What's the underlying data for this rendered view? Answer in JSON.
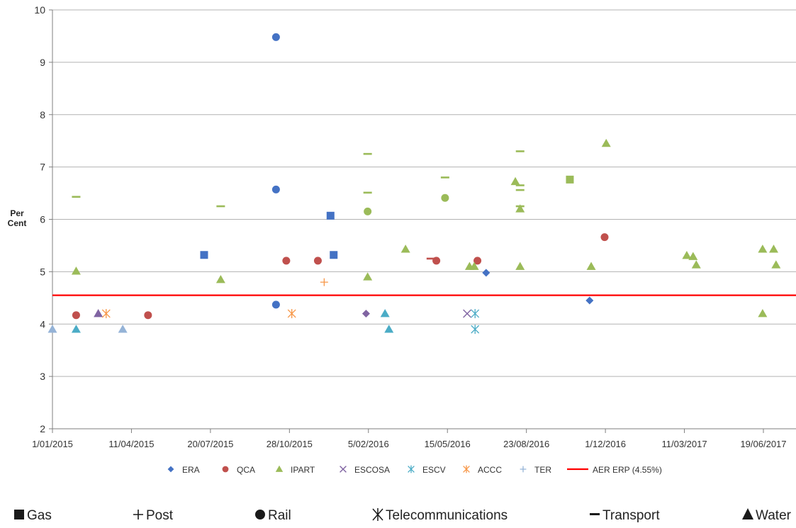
{
  "chart_data": {
    "type": "scatter",
    "ylabel": "Per\nCent",
    "xlim": [
      "2015-01-01",
      "2017-07-25"
    ],
    "ylim": [
      2,
      10
    ],
    "y_ticks": [
      2,
      3,
      4,
      5,
      6,
      7,
      8,
      9,
      10
    ],
    "x_ticks": [
      {
        "date": "2015-01-01",
        "label": "1/01/2015"
      },
      {
        "date": "2015-04-11",
        "label": "11/04/2015"
      },
      {
        "date": "2015-07-20",
        "label": "20/07/2015"
      },
      {
        "date": "2015-10-28",
        "label": "28/10/2015"
      },
      {
        "date": "2016-02-05",
        "label": "5/02/2016"
      },
      {
        "date": "2016-05-15",
        "label": "15/05/2016"
      },
      {
        "date": "2016-08-23",
        "label": "23/08/2016"
      },
      {
        "date": "2016-12-01",
        "label": "1/12/2016"
      },
      {
        "date": "2017-03-11",
        "label": "11/03/2017"
      },
      {
        "date": "2017-06-19",
        "label": "19/06/2017"
      }
    ],
    "grid": true,
    "legend_position": "bottom",
    "legend": [
      {
        "name": "ERA",
        "color": "#4472c4",
        "marker": "diamond"
      },
      {
        "name": "QCA",
        "color": "#c0504d",
        "marker": "circle"
      },
      {
        "name": "IPART",
        "color": "#9bbb59",
        "marker": "triangle"
      },
      {
        "name": "ESCOSA",
        "color": "#8064a2",
        "marker": "x"
      },
      {
        "name": "ESCV",
        "color": "#4bacc6",
        "marker": "star"
      },
      {
        "name": "ACCC",
        "color": "#f79646",
        "marker": "star"
      },
      {
        "name": "TER",
        "color": "#95b3d7",
        "marker": "plus"
      },
      {
        "name": "AER ERP (4.55%)",
        "color": "#ff0000",
        "marker": "line"
      }
    ],
    "reference_line": {
      "name": "AER ERP (4.55%)",
      "y": 4.55,
      "color": "#ff0000"
    },
    "series": [
      {
        "name": "ERA",
        "color": "#4472c4",
        "points": [
          {
            "x": "2015-10-11",
            "y": 9.48,
            "shape": "circle"
          },
          {
            "x": "2015-10-11",
            "y": 6.57,
            "shape": "circle"
          },
          {
            "x": "2015-10-11",
            "y": 4.37,
            "shape": "circle"
          },
          {
            "x": "2015-07-12",
            "y": 5.32,
            "shape": "square"
          },
          {
            "x": "2015-12-19",
            "y": 6.07,
            "shape": "square"
          },
          {
            "x": "2015-12-23",
            "y": 5.32,
            "shape": "square"
          },
          {
            "x": "2016-07-03",
            "y": 4.98,
            "shape": "diamond"
          },
          {
            "x": "2016-11-11",
            "y": 4.45,
            "shape": "diamond"
          }
        ]
      },
      {
        "name": "QCA",
        "color": "#c0504d",
        "points": [
          {
            "x": "2015-01-31",
            "y": 4.17,
            "shape": "circle"
          },
          {
            "x": "2015-05-02",
            "y": 4.17,
            "shape": "circle"
          },
          {
            "x": "2015-10-24",
            "y": 5.21,
            "shape": "circle"
          },
          {
            "x": "2015-12-03",
            "y": 5.21,
            "shape": "circle"
          },
          {
            "x": "2016-05-01",
            "y": 5.21,
            "shape": "circle"
          },
          {
            "x": "2016-06-22",
            "y": 5.21,
            "shape": "circle"
          },
          {
            "x": "2016-11-30",
            "y": 5.66,
            "shape": "circle"
          },
          {
            "x": "2016-04-24",
            "y": 5.25,
            "shape": "dash"
          }
        ]
      },
      {
        "name": "IPART",
        "color": "#9bbb59",
        "points": [
          {
            "x": "2015-01-31",
            "y": 6.43,
            "shape": "dash"
          },
          {
            "x": "2015-01-31",
            "y": 5.01,
            "shape": "triangle"
          },
          {
            "x": "2015-08-02",
            "y": 6.25,
            "shape": "dash"
          },
          {
            "x": "2015-08-02",
            "y": 4.85,
            "shape": "triangle"
          },
          {
            "x": "2016-02-04",
            "y": 7.25,
            "shape": "dash"
          },
          {
            "x": "2016-02-04",
            "y": 6.51,
            "shape": "dash"
          },
          {
            "x": "2016-02-04",
            "y": 6.15,
            "shape": "circle"
          },
          {
            "x": "2016-02-04",
            "y": 4.9,
            "shape": "triangle"
          },
          {
            "x": "2016-03-23",
            "y": 5.43,
            "shape": "triangle"
          },
          {
            "x": "2016-05-12",
            "y": 6.8,
            "shape": "dash"
          },
          {
            "x": "2016-05-12",
            "y": 6.41,
            "shape": "circle"
          },
          {
            "x": "2016-06-12",
            "y": 5.1,
            "shape": "triangle"
          },
          {
            "x": "2016-06-18",
            "y": 5.1,
            "shape": "triangle"
          },
          {
            "x": "2016-08-09",
            "y": 6.72,
            "shape": "triangle"
          },
          {
            "x": "2016-08-15",
            "y": 7.3,
            "shape": "dash"
          },
          {
            "x": "2016-08-15",
            "y": 6.65,
            "shape": "dash"
          },
          {
            "x": "2016-08-15",
            "y": 6.56,
            "shape": "dash"
          },
          {
            "x": "2016-08-15",
            "y": 6.25,
            "shape": "dash"
          },
          {
            "x": "2016-08-15",
            "y": 6.2,
            "shape": "triangle"
          },
          {
            "x": "2016-08-15",
            "y": 5.1,
            "shape": "triangle"
          },
          {
            "x": "2016-10-17",
            "y": 6.76,
            "shape": "square"
          },
          {
            "x": "2016-11-13",
            "y": 5.1,
            "shape": "triangle"
          },
          {
            "x": "2016-12-02",
            "y": 7.45,
            "shape": "triangle"
          },
          {
            "x": "2017-03-14",
            "y": 5.31,
            "shape": "triangle"
          },
          {
            "x": "2017-03-22",
            "y": 5.29,
            "shape": "triangle"
          },
          {
            "x": "2017-03-26",
            "y": 5.13,
            "shape": "triangle"
          },
          {
            "x": "2017-06-18",
            "y": 5.43,
            "shape": "triangle"
          },
          {
            "x": "2017-06-18",
            "y": 4.2,
            "shape": "triangle"
          },
          {
            "x": "2017-07-02",
            "y": 5.43,
            "shape": "triangle"
          },
          {
            "x": "2017-07-05",
            "y": 5.13,
            "shape": "triangle"
          }
        ]
      },
      {
        "name": "ESCOSA",
        "color": "#8064a2",
        "points": [
          {
            "x": "2015-02-28",
            "y": 4.2,
            "shape": "triangle"
          },
          {
            "x": "2016-02-02",
            "y": 4.2,
            "shape": "diamond"
          },
          {
            "x": "2016-06-09",
            "y": 4.2,
            "shape": "x"
          }
        ]
      },
      {
        "name": "ESCV",
        "color": "#4bacc6",
        "points": [
          {
            "x": "2015-01-31",
            "y": 3.9,
            "shape": "triangle"
          },
          {
            "x": "2016-02-26",
            "y": 4.2,
            "shape": "triangle"
          },
          {
            "x": "2016-03-02",
            "y": 3.9,
            "shape": "triangle"
          },
          {
            "x": "2016-06-19",
            "y": 4.2,
            "shape": "star"
          },
          {
            "x": "2016-06-19",
            "y": 3.9,
            "shape": "star"
          }
        ]
      },
      {
        "name": "ACCC",
        "color": "#f79646",
        "points": [
          {
            "x": "2015-03-10",
            "y": 4.2,
            "shape": "star"
          },
          {
            "x": "2015-10-31",
            "y": 4.2,
            "shape": "star"
          },
          {
            "x": "2015-12-11",
            "y": 4.8,
            "shape": "plus"
          }
        ]
      },
      {
        "name": "TER",
        "color": "#95b3d7",
        "points": [
          {
            "x": "2015-01-01",
            "y": 3.9,
            "shape": "triangle"
          },
          {
            "x": "2015-03-31",
            "y": 3.9,
            "shape": "triangle"
          }
        ]
      }
    ]
  },
  "shape_key": [
    {
      "label": "Gas",
      "icon": "filled-square-icon"
    },
    {
      "label": "Post",
      "icon": "plus-icon"
    },
    {
      "label": "Rail",
      "icon": "filled-circle-icon"
    },
    {
      "label": "Telecommunications",
      "icon": "asterisk-icon"
    },
    {
      "label": "Transport",
      "icon": "dash-icon"
    },
    {
      "label": "Water",
      "icon": "filled-triangle-icon"
    }
  ]
}
